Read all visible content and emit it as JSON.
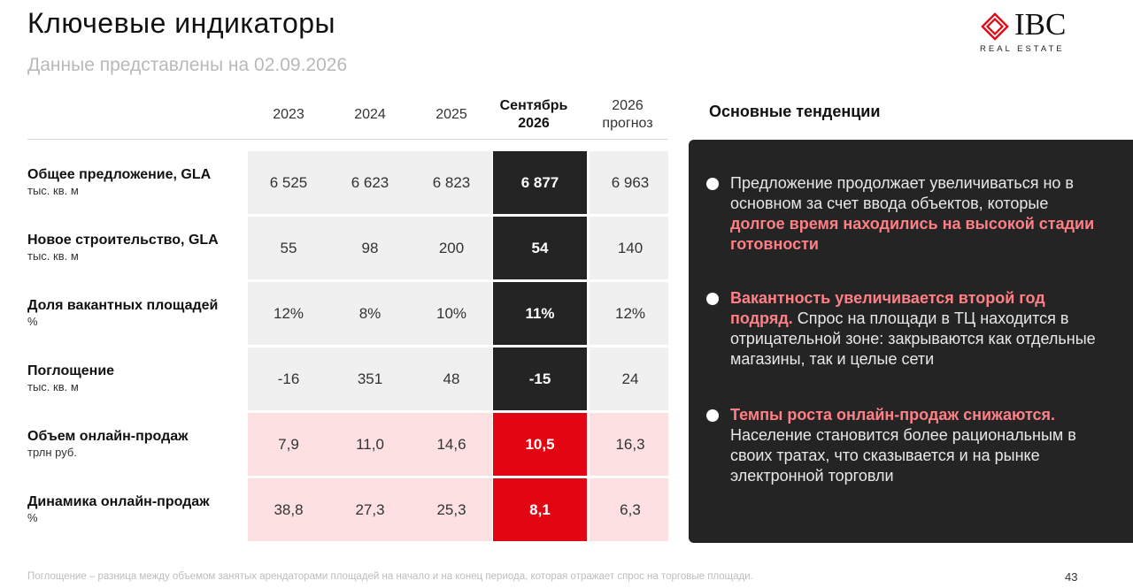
{
  "header": {
    "title": "Ключевые индикаторы",
    "subtitle": "Данные представлены на 02.09.2026"
  },
  "logo": {
    "name": "IBC",
    "tagline": "REAL ESTATE"
  },
  "table": {
    "columns": [
      "2023",
      "2024",
      "2025",
      "Сентябрь 2026",
      "2026 прогноз"
    ],
    "highlight_column": 3,
    "rows": [
      {
        "label": "Общее предложение, GLA",
        "unit": "тыс. кв. м",
        "values": [
          "6 525",
          "6 623",
          "6 823",
          "6 877",
          "6 963"
        ],
        "style": "gray"
      },
      {
        "label": "Новое строительство, GLA",
        "unit": "тыс. кв. м",
        "values": [
          "55",
          "98",
          "200",
          "54",
          "140"
        ],
        "style": "gray"
      },
      {
        "label": "Доля вакантных площадей",
        "unit": "%",
        "values": [
          "12%",
          "8%",
          "10%",
          "11%",
          "12%"
        ],
        "style": "gray"
      },
      {
        "label": "Поглощение",
        "unit": "тыс. кв. м",
        "values": [
          "-16",
          "351",
          "48",
          "-15",
          "24"
        ],
        "style": "gray"
      },
      {
        "label": "Объем онлайн-продаж",
        "unit": "трлн руб.",
        "values": [
          "7,9",
          "11,0",
          "14,6",
          "10,5",
          "16,3"
        ],
        "style": "pink"
      },
      {
        "label": "Динамика онлайн-продаж",
        "unit": "%",
        "values": [
          "38,8",
          "27,3",
          "25,3",
          "8,1",
          "6,3"
        ],
        "style": "pink"
      }
    ]
  },
  "trends": {
    "title": "Основные тенденции",
    "items": [
      {
        "lead": "",
        "text_before": "Предложение продолжает увеличиваться но в основном за счет ввода объектов, которые ",
        "accent": "долгое время находились на высокой стадии готовности",
        "text_after": ""
      },
      {
        "lead": "",
        "text_before": "",
        "accent": "Вакантность увеличивается второй год подряд.",
        "text_after": " Спрос на площади в ТЦ находится в отрицательной зоне: закрываются как отдельные магазины, так и целые сети"
      },
      {
        "lead": "",
        "text_before": "",
        "accent": "Темпы роста онлайн-продаж снижаются.",
        "text_after": " Население становится более рациональным в своих тратах, что сказывается и на рынке электронной торговли"
      }
    ]
  },
  "footer": {
    "footnote": "Поглощение – разница между объемом занятых арендаторами площадей на начало и на конец периода, которая отражает спрос на торговые площади.",
    "page_number": "43"
  },
  "colors": {
    "accent_red": "#e20613",
    "accent_text": "#ff7f86",
    "dark_panel": "#242424",
    "gray_cell": "#f0f0f0",
    "pink_cell": "#fde1e2"
  }
}
